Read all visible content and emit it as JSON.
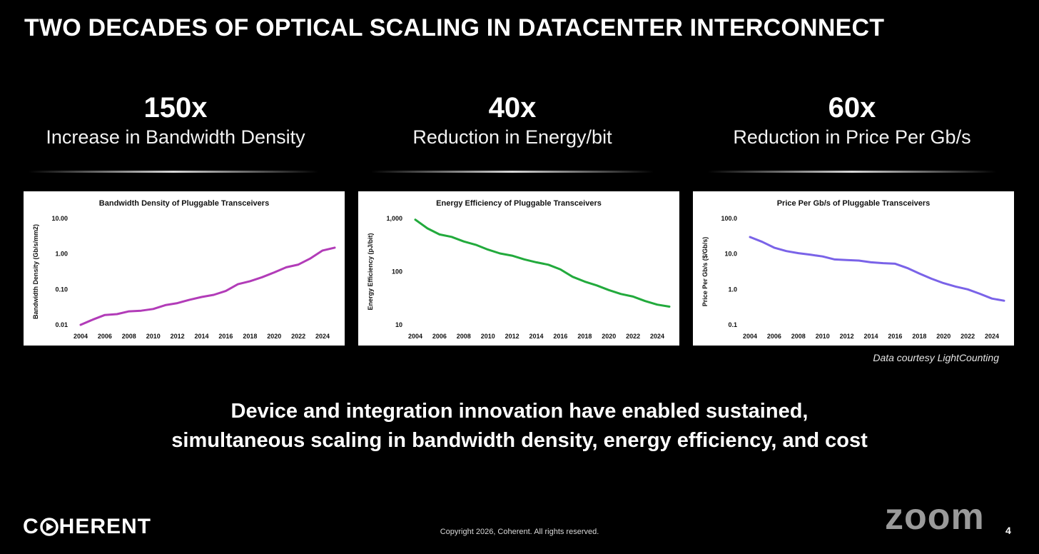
{
  "slide": {
    "title": "TWO DECADES OF OPTICAL SCALING IN DATACENTER INTERCONNECT",
    "stats": [
      {
        "value": "150x",
        "label": "Increase in Bandwidth Density"
      },
      {
        "value": "40x",
        "label": "Reduction in Energy/bit"
      },
      {
        "value": "60x",
        "label": "Reduction in Price Per Gb/s"
      }
    ],
    "courtesy": "Data courtesy LightCounting",
    "message_line1": "Device and integration innovation have enabled sustained,",
    "message_line2": "simultaneous scaling in bandwidth density, energy efficiency, and cost",
    "logo_first": "C",
    "logo_rest": "HERENT",
    "copyright": "Copyright 2026, Coherent. All rights reserved.",
    "zoom_logo": "zoom",
    "page_number": "4"
  },
  "colors": {
    "background": "#000000",
    "bandwidth_line": "#b23cb8",
    "energy_line": "#22aa3c",
    "price_line": "#7a63e8"
  },
  "chart_data": [
    {
      "type": "line",
      "title": "Bandwidth Density of Pluggable Transceivers",
      "xlabel": "",
      "ylabel": "Bandwidth Density (Gb/s/mm2)",
      "yscale": "log",
      "ylim": [
        0.01,
        10
      ],
      "yticks": [
        10,
        1,
        0.1,
        0.01
      ],
      "ytick_labels": [
        "10.00",
        "1.00",
        "0.10",
        "0.01"
      ],
      "xticks": [
        2004,
        2006,
        2008,
        2010,
        2012,
        2014,
        2016,
        2018,
        2020,
        2022,
        2024
      ],
      "xlim": [
        2004,
        2025
      ],
      "color": "#b23cb8",
      "x": [
        2004,
        2005,
        2006,
        2007,
        2008,
        2009,
        2010,
        2011,
        2012,
        2013,
        2014,
        2015,
        2016,
        2017,
        2018,
        2019,
        2020,
        2021,
        2022,
        2023,
        2024,
        2025
      ],
      "values": [
        0.01,
        0.014,
        0.019,
        0.02,
        0.024,
        0.025,
        0.028,
        0.036,
        0.041,
        0.051,
        0.061,
        0.07,
        0.09,
        0.14,
        0.17,
        0.22,
        0.3,
        0.42,
        0.5,
        0.75,
        1.25,
        1.5
      ]
    },
    {
      "type": "line",
      "title": "Energy Efficiency of Pluggable Transceivers",
      "xlabel": "",
      "ylabel": "Energy Efficiency (pJ/bit)",
      "yscale": "log",
      "ylim": [
        10,
        1000
      ],
      "yticks": [
        1000,
        100,
        10
      ],
      "ytick_labels": [
        "1,000",
        "100",
        "10"
      ],
      "xticks": [
        2004,
        2006,
        2008,
        2010,
        2012,
        2014,
        2016,
        2018,
        2020,
        2022,
        2024
      ],
      "xlim": [
        2004,
        2025
      ],
      "color": "#22aa3c",
      "x": [
        2004,
        2005,
        2006,
        2007,
        2008,
        2009,
        2010,
        2011,
        2012,
        2013,
        2014,
        2015,
        2016,
        2017,
        2018,
        2019,
        2020,
        2021,
        2022,
        2023,
        2024,
        2025
      ],
      "values": [
        950,
        650,
        500,
        450,
        370,
        320,
        260,
        220,
        200,
        170,
        150,
        135,
        110,
        80,
        65,
        55,
        45,
        38,
        34,
        28,
        24,
        22
      ]
    },
    {
      "type": "line",
      "title": "Price Per Gb/s of Pluggable Transceivers",
      "xlabel": "",
      "ylabel": "Price Per Gb/s ($/Gb/s)",
      "yscale": "log",
      "ylim": [
        0.1,
        100
      ],
      "yticks": [
        100,
        10,
        1,
        0.1
      ],
      "ytick_labels": [
        "100.0",
        "10.0",
        "1.0",
        "0.1"
      ],
      "xticks": [
        2004,
        2006,
        2008,
        2010,
        2012,
        2014,
        2016,
        2018,
        2020,
        2022,
        2024
      ],
      "xlim": [
        2004,
        2025
      ],
      "color": "#7a63e8",
      "x": [
        2004,
        2005,
        2006,
        2007,
        2008,
        2009,
        2010,
        2011,
        2012,
        2013,
        2014,
        2015,
        2016,
        2017,
        2018,
        2019,
        2020,
        2021,
        2022,
        2023,
        2024,
        2025
      ],
      "values": [
        30,
        22,
        15,
        12,
        10.5,
        9.5,
        8.5,
        7,
        6.7,
        6.5,
        5.8,
        5.5,
        5.3,
        4,
        2.8,
        2,
        1.5,
        1.2,
        1,
        0.75,
        0.55,
        0.48
      ]
    }
  ]
}
